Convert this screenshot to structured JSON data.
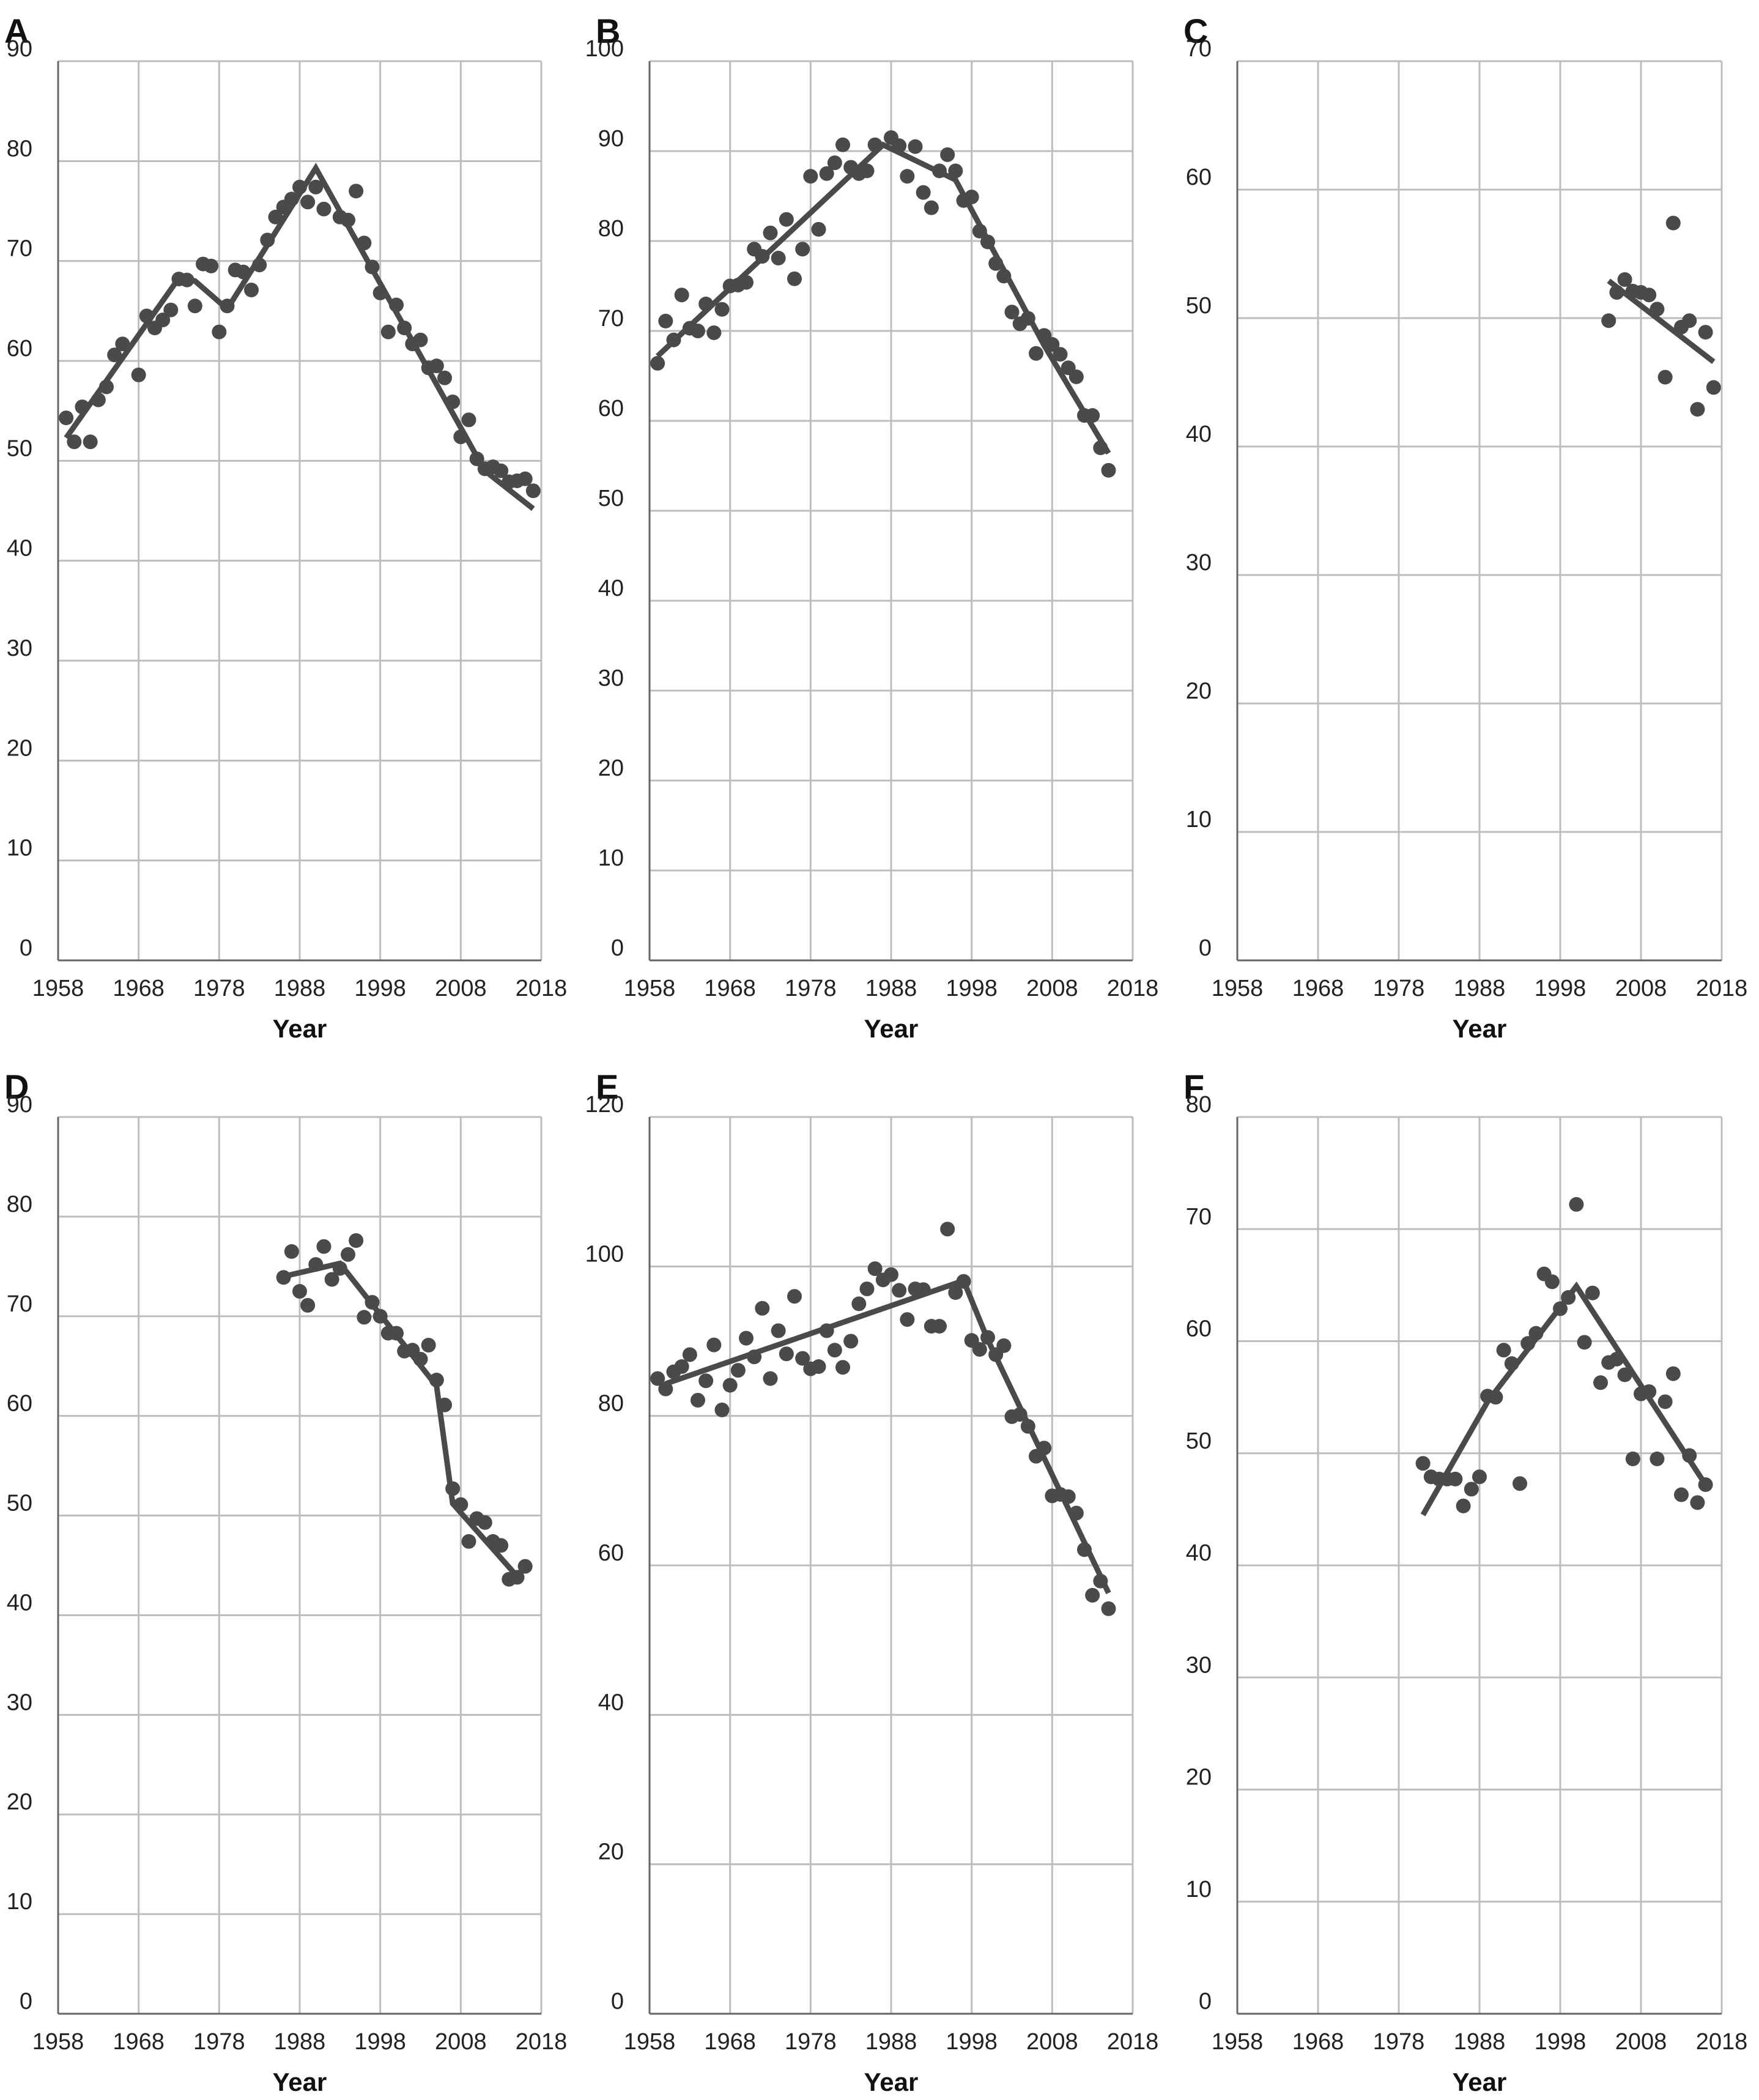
{
  "chart_data": [
    {
      "panel": "A",
      "type": "scatter",
      "xlabel": "Year",
      "xlim": [
        1958,
        2018
      ],
      "ylim": [
        0,
        90
      ],
      "xticks": [
        1958,
        1968,
        1978,
        1988,
        1998,
        2008,
        2018
      ],
      "yticks": [
        0,
        10,
        20,
        30,
        40,
        50,
        60,
        70,
        80,
        90
      ],
      "grid": true,
      "points": [
        [
          1959,
          54.3
        ],
        [
          1960,
          51.9
        ],
        [
          1961,
          55.4
        ],
        [
          1962,
          51.9
        ],
        [
          1963,
          56.1
        ],
        [
          1964,
          57.4
        ],
        [
          1965,
          60.6
        ],
        [
          1966,
          61.7
        ],
        [
          1968,
          58.6
        ],
        [
          1969,
          64.5
        ],
        [
          1970,
          63.3
        ],
        [
          1971,
          64.1
        ],
        [
          1972,
          65.1
        ],
        [
          1973,
          68.2
        ],
        [
          1974,
          68.1
        ],
        [
          1975,
          65.5
        ],
        [
          1976,
          69.7
        ],
        [
          1977,
          69.5
        ],
        [
          1978,
          62.9
        ],
        [
          1979,
          65.5
        ],
        [
          1980,
          69.1
        ],
        [
          1981,
          68.9
        ],
        [
          1982,
          67.1
        ],
        [
          1983,
          69.6
        ],
        [
          1984,
          72.1
        ],
        [
          1985,
          74.4
        ],
        [
          1986,
          75.4
        ],
        [
          1987,
          76.2
        ],
        [
          1988,
          77.4
        ],
        [
          1989,
          75.9
        ],
        [
          1990,
          77.4
        ],
        [
          1991,
          75.2
        ],
        [
          1993,
          74.4
        ],
        [
          1994,
          74.1
        ],
        [
          1995,
          77.0
        ],
        [
          1996,
          71.8
        ],
        [
          1997,
          69.4
        ],
        [
          1998,
          66.8
        ],
        [
          1999,
          62.9
        ],
        [
          2000,
          65.6
        ],
        [
          2001,
          63.3
        ],
        [
          2002,
          61.7
        ],
        [
          2003,
          62.1
        ],
        [
          2004,
          59.3
        ],
        [
          2005,
          59.5
        ],
        [
          2006,
          58.3
        ],
        [
          2007,
          55.9
        ],
        [
          2008,
          52.4
        ],
        [
          2009,
          54.1
        ],
        [
          2010,
          50.2
        ],
        [
          2011,
          49.2
        ],
        [
          2012,
          49.4
        ],
        [
          2013,
          49.0
        ],
        [
          2014,
          47.9
        ],
        [
          2015,
          48.0
        ],
        [
          2016,
          48.2
        ],
        [
          2017,
          47.0
        ]
      ],
      "trend": [
        [
          1959,
          52.3
        ],
        [
          1973,
          68.3
        ],
        [
          1975,
          68.0
        ],
        [
          1979,
          65.2
        ],
        [
          1990,
          79.3
        ],
        [
          2011,
          49.0
        ],
        [
          2017,
          45.2
        ]
      ]
    },
    {
      "panel": "B",
      "type": "scatter",
      "xlabel": "Year",
      "xlim": [
        1958,
        2018
      ],
      "ylim": [
        0,
        100
      ],
      "xticks": [
        1958,
        1968,
        1978,
        1988,
        1998,
        2008,
        2018
      ],
      "yticks": [
        0,
        10,
        20,
        30,
        40,
        50,
        60,
        70,
        80,
        90,
        100
      ],
      "grid": true,
      "points": [
        [
          1959,
          66.4
        ],
        [
          1960,
          71.1
        ],
        [
          1961,
          69.0
        ],
        [
          1962,
          74.0
        ],
        [
          1963,
          70.3
        ],
        [
          1964,
          70.0
        ],
        [
          1965,
          73.0
        ],
        [
          1966,
          69.8
        ],
        [
          1967,
          72.4
        ],
        [
          1968,
          75.0
        ],
        [
          1969,
          75.1
        ],
        [
          1970,
          75.4
        ],
        [
          1971,
          79.1
        ],
        [
          1972,
          78.3
        ],
        [
          1973,
          80.9
        ],
        [
          1974,
          78.1
        ],
        [
          1975,
          82.4
        ],
        [
          1976,
          75.8
        ],
        [
          1977,
          79.1
        ],
        [
          1978,
          87.2
        ],
        [
          1979,
          81.3
        ],
        [
          1980,
          87.5
        ],
        [
          1981,
          88.7
        ],
        [
          1982,
          90.7
        ],
        [
          1983,
          88.2
        ],
        [
          1984,
          87.5
        ],
        [
          1985,
          87.8
        ],
        [
          1986,
          90.7
        ],
        [
          1988,
          91.5
        ],
        [
          1989,
          90.6
        ],
        [
          1990,
          87.2
        ],
        [
          1991,
          90.5
        ],
        [
          1992,
          85.4
        ],
        [
          1993,
          83.7
        ],
        [
          1994,
          87.8
        ],
        [
          1995,
          89.6
        ],
        [
          1996,
          87.8
        ],
        [
          1997,
          84.5
        ],
        [
          1998,
          84.9
        ],
        [
          1999,
          81.1
        ],
        [
          2000,
          79.9
        ],
        [
          2001,
          77.5
        ],
        [
          2002,
          76.1
        ],
        [
          2003,
          72.1
        ],
        [
          2004,
          70.8
        ],
        [
          2005,
          71.4
        ],
        [
          2006,
          67.5
        ],
        [
          2007,
          69.5
        ],
        [
          2008,
          68.5
        ],
        [
          2009,
          67.4
        ],
        [
          2010,
          65.9
        ],
        [
          2011,
          64.9
        ],
        [
          2012,
          60.6
        ],
        [
          2013,
          60.6
        ],
        [
          2014,
          57.0
        ],
        [
          2015,
          54.5
        ]
      ],
      "trend": [
        [
          1959,
          67.2
        ],
        [
          1987,
          90.7
        ],
        [
          1996,
          86.8
        ],
        [
          2007,
          68.4
        ],
        [
          2015,
          56.4
        ]
      ]
    },
    {
      "panel": "C",
      "type": "scatter",
      "xlabel": "Year",
      "xlim": [
        1958,
        2018
      ],
      "ylim": [
        0,
        70
      ],
      "xticks": [
        1958,
        1968,
        1978,
        1988,
        1998,
        2008,
        2018
      ],
      "yticks": [
        0,
        10,
        20,
        30,
        40,
        50,
        60,
        70
      ],
      "grid": true,
      "points": [
        [
          2004,
          49.8
        ],
        [
          2005,
          52.0
        ],
        [
          2006,
          53.0
        ],
        [
          2007,
          52.1
        ],
        [
          2008,
          52.0
        ],
        [
          2009,
          51.8
        ],
        [
          2010,
          50.7
        ],
        [
          2011,
          45.4
        ],
        [
          2012,
          57.4
        ],
        [
          2013,
          49.3
        ],
        [
          2014,
          49.8
        ],
        [
          2015,
          42.9
        ],
        [
          2016,
          48.9
        ],
        [
          2017,
          44.6
        ]
      ],
      "trend": [
        [
          2004,
          52.9
        ],
        [
          2017,
          46.6
        ]
      ]
    },
    {
      "panel": "D",
      "type": "scatter",
      "xlabel": "Year",
      "xlim": [
        1958,
        2018
      ],
      "ylim": [
        0,
        90
      ],
      "xticks": [
        1958,
        1968,
        1978,
        1988,
        1998,
        2008,
        2018
      ],
      "yticks": [
        0,
        10,
        20,
        30,
        40,
        50,
        60,
        70,
        80,
        90
      ],
      "grid": true,
      "points": [
        [
          1986,
          73.9
        ],
        [
          1987,
          76.5
        ],
        [
          1988,
          72.5
        ],
        [
          1989,
          71.1
        ],
        [
          1990,
          75.2
        ],
        [
          1991,
          77.0
        ],
        [
          1992,
          73.7
        ],
        [
          1993,
          74.8
        ],
        [
          1994,
          76.2
        ],
        [
          1995,
          77.6
        ],
        [
          1996,
          69.9
        ],
        [
          1997,
          71.4
        ],
        [
          1998,
          70.0
        ],
        [
          1999,
          68.3
        ],
        [
          2000,
          68.3
        ],
        [
          2001,
          66.5
        ],
        [
          2002,
          66.6
        ],
        [
          2003,
          65.7
        ],
        [
          2004,
          67.1
        ],
        [
          2005,
          63.6
        ],
        [
          2006,
          61.1
        ],
        [
          2007,
          52.7
        ],
        [
          2008,
          51.1
        ],
        [
          2009,
          47.4
        ],
        [
          2010,
          49.7
        ],
        [
          2011,
          49.3
        ],
        [
          2012,
          47.4
        ],
        [
          2013,
          47.0
        ],
        [
          2014,
          43.6
        ],
        [
          2015,
          43.8
        ],
        [
          2016,
          44.9
        ]
      ],
      "trend": [
        [
          1986,
          74.0
        ],
        [
          1993,
          75.3
        ],
        [
          2005,
          63.0
        ],
        [
          2007,
          51.2
        ],
        [
          2015,
          43.9
        ]
      ]
    },
    {
      "panel": "E",
      "type": "scatter",
      "xlabel": "Year",
      "xlim": [
        1958,
        2018
      ],
      "ylim": [
        0,
        120
      ],
      "xticks": [
        1958,
        1968,
        1978,
        1988,
        1998,
        2008,
        2018
      ],
      "yticks": [
        0,
        20,
        40,
        60,
        80,
        100,
        120
      ],
      "grid": true,
      "points": [
        [
          1959,
          85.0
        ],
        [
          1960,
          83.6
        ],
        [
          1961,
          85.9
        ],
        [
          1962,
          86.6
        ],
        [
          1963,
          88.2
        ],
        [
          1964,
          82.1
        ],
        [
          1965,
          84.7
        ],
        [
          1966,
          89.5
        ],
        [
          1967,
          80.8
        ],
        [
          1968,
          84.1
        ],
        [
          1969,
          86.1
        ],
        [
          1970,
          90.4
        ],
        [
          1971,
          87.9
        ],
        [
          1972,
          94.4
        ],
        [
          1973,
          85.0
        ],
        [
          1974,
          91.4
        ],
        [
          1975,
          88.3
        ],
        [
          1976,
          96.0
        ],
        [
          1977,
          87.7
        ],
        [
          1978,
          86.3
        ],
        [
          1979,
          86.6
        ],
        [
          1980,
          91.4
        ],
        [
          1981,
          88.8
        ],
        [
          1982,
          86.5
        ],
        [
          1983,
          90.0
        ],
        [
          1984,
          95.0
        ],
        [
          1985,
          97.0
        ],
        [
          1986,
          99.7
        ],
        [
          1987,
          98.2
        ],
        [
          1988,
          98.9
        ],
        [
          1989,
          96.8
        ],
        [
          1990,
          92.9
        ],
        [
          1991,
          97.0
        ],
        [
          1992,
          96.9
        ],
        [
          1993,
          92.0
        ],
        [
          1994,
          92.0
        ],
        [
          1995,
          105.0
        ],
        [
          1996,
          96.5
        ],
        [
          1997,
          98.0
        ],
        [
          1998,
          90.1
        ],
        [
          1999,
          88.9
        ],
        [
          2000,
          90.5
        ],
        [
          2001,
          88.2
        ],
        [
          2002,
          89.4
        ],
        [
          2003,
          79.9
        ],
        [
          2004,
          80.2
        ],
        [
          2005,
          78.6
        ],
        [
          2006,
          74.6
        ],
        [
          2007,
          75.7
        ],
        [
          2008,
          69.3
        ],
        [
          2009,
          69.5
        ],
        [
          2010,
          69.2
        ],
        [
          2011,
          67.0
        ],
        [
          2012,
          62.1
        ],
        [
          2013,
          56.0
        ],
        [
          2014,
          57.9
        ],
        [
          2015,
          54.2
        ]
      ],
      "trend": [
        [
          1960,
          84.3
        ],
        [
          1997,
          98.1
        ],
        [
          2000,
          90.2
        ],
        [
          2015,
          56.3
        ]
      ]
    },
    {
      "panel": "F",
      "type": "scatter",
      "xlabel": "Year",
      "xlim": [
        1958,
        2018
      ],
      "ylim": [
        0,
        80
      ],
      "xticks": [
        1958,
        1968,
        1978,
        1988,
        1998,
        2008,
        2018
      ],
      "yticks": [
        0,
        10,
        20,
        30,
        40,
        50,
        60,
        70,
        80
      ],
      "grid": true,
      "points": [
        [
          1981,
          49.1
        ],
        [
          1982,
          47.9
        ],
        [
          1983,
          47.7
        ],
        [
          1984,
          47.7
        ],
        [
          1985,
          47.7
        ],
        [
          1986,
          45.3
        ],
        [
          1987,
          46.8
        ],
        [
          1988,
          47.9
        ],
        [
          1989,
          55.1
        ],
        [
          1990,
          55.0
        ],
        [
          1991,
          59.2
        ],
        [
          1992,
          58.0
        ],
        [
          1993,
          47.3
        ],
        [
          1994,
          59.8
        ],
        [
          1995,
          60.7
        ],
        [
          1996,
          66.0
        ],
        [
          1997,
          65.3
        ],
        [
          1998,
          62.9
        ],
        [
          1999,
          63.9
        ],
        [
          2000,
          72.2
        ],
        [
          2001,
          59.9
        ],
        [
          2002,
          64.3
        ],
        [
          2003,
          56.3
        ],
        [
          2004,
          58.1
        ],
        [
          2005,
          58.4
        ],
        [
          2006,
          57.0
        ],
        [
          2007,
          49.5
        ],
        [
          2008,
          55.3
        ],
        [
          2009,
          55.5
        ],
        [
          2010,
          49.5
        ],
        [
          2011,
          54.6
        ],
        [
          2012,
          57.1
        ],
        [
          2013,
          46.3
        ],
        [
          2014,
          49.8
        ],
        [
          2015,
          45.6
        ],
        [
          2016,
          47.2
        ]
      ],
      "trend": [
        [
          1981,
          44.5
        ],
        [
          1989,
          54.6
        ],
        [
          2000,
          64.9
        ],
        [
          2016,
          47.2
        ]
      ]
    }
  ]
}
